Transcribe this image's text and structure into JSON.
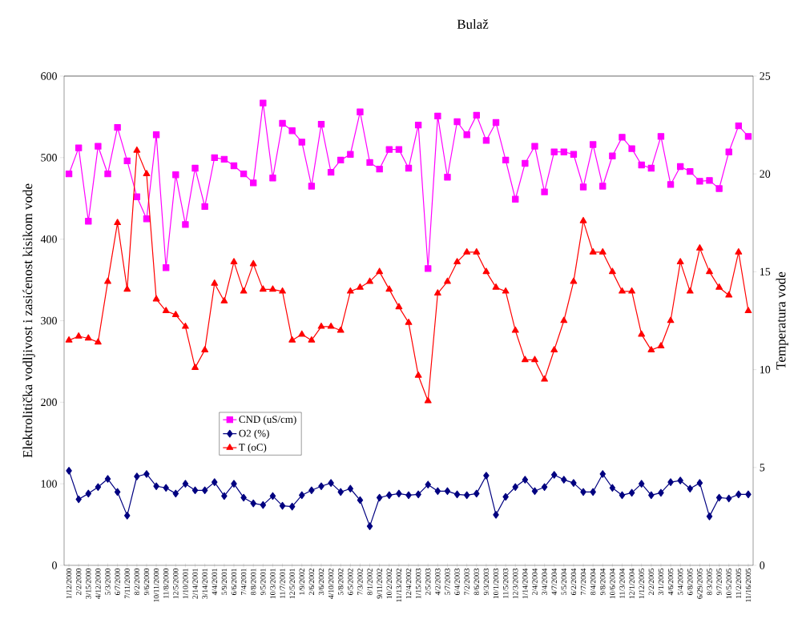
{
  "chart_data": {
    "type": "line",
    "title": "Bulaž",
    "ylabel": "Elektrolitička vodljivost i zasićenost kisikom vode",
    "y2label": "Temperatura vode",
    "categories": [
      "1/12/2000",
      "2/2/2000",
      "3/15/2000",
      "4/12/2000",
      "5/3/2000",
      "6/7/2000",
      "7/11/2000",
      "8/2/2000",
      "9/6/2000",
      "10/11/2000",
      "11/8/2000",
      "12/5/2000",
      "1/10/2001",
      "2/14/2001",
      "3/14/2001",
      "4/4/2001",
      "5/9/2001",
      "6/6/2001",
      "7/4/2001",
      "8/8/2001",
      "9/5/2001",
      "10/3/2001",
      "11/7/2001",
      "12/5/2001",
      "1/9/2002",
      "2/6/2002",
      "3/6/2002",
      "4/10/2002",
      "5/8/2002",
      "6/5/2002",
      "7/3/2002",
      "8/1/2002",
      "9/11/2002",
      "10/2/2002",
      "11/13/2002",
      "12/4/2002",
      "1/15/2003",
      "2/5/2003",
      "4/2/2003",
      "5/7/2003",
      "6/4/2003",
      "7/2/2003",
      "8/6/2003",
      "9/3/2003",
      "10/1/2003",
      "11/5/2003",
      "12/3/2003",
      "1/14/2004",
      "2/4/2004",
      "3/4/2004",
      "4/7/2004",
      "5/5/2004",
      "6/2/2004",
      "7/7/2004",
      "8/4/2004",
      "9/8/2004",
      "10/6/2004",
      "11/3/2004",
      "12/1/2004",
      "1/12/2005",
      "2/2/2005",
      "3/1/2005",
      "4/6/2005",
      "5/4/2005",
      "6/8/2005",
      "6/29/2005",
      "8/3/2005",
      "9/7/2005",
      "10/5/2005",
      "11/2/2005",
      "11/16/2005"
    ],
    "series": [
      {
        "name": "CND (uS/cm)",
        "color": "#ff00ff",
        "marker": "square",
        "values": [
          480,
          512,
          422,
          514,
          480,
          537,
          496,
          452,
          425,
          528,
          365,
          479,
          418,
          487,
          440,
          500,
          498,
          490,
          480,
          469,
          567,
          475,
          542,
          533,
          519,
          465,
          541,
          482,
          497,
          504,
          556,
          494,
          486,
          510,
          510,
          487,
          540,
          364,
          551,
          476,
          544,
          528,
          552,
          521,
          543,
          497,
          449,
          493,
          514,
          458,
          507,
          507,
          504,
          464,
          516,
          465,
          502,
          525,
          511,
          491,
          487,
          526,
          467,
          489,
          483,
          471,
          472,
          462,
          507,
          539,
          526
        ]
      },
      {
        "name": "O2 (%)",
        "color": "#000080",
        "marker": "diamond",
        "values": [
          116,
          81,
          88,
          96,
          106,
          90,
          61,
          109,
          112,
          97,
          95,
          88,
          100,
          92,
          92,
          102,
          85,
          100,
          83,
          76,
          74,
          85,
          73,
          72,
          86,
          92,
          97,
          101,
          90,
          94,
          80,
          48,
          83,
          86,
          88,
          86,
          87,
          99,
          91,
          91,
          87,
          86,
          88,
          110,
          62,
          84,
          96,
          105,
          91,
          96,
          111,
          105,
          101,
          90,
          90,
          112,
          95,
          86,
          89,
          100,
          86,
          89,
          102,
          104,
          94,
          101,
          60,
          83,
          82,
          87,
          87
        ]
      },
      {
        "name": "T (oC)",
        "color": "#ff0000",
        "marker": "triangle",
        "axis": "y2",
        "values": [
          11.5,
          11.7,
          11.6,
          11.4,
          14.5,
          17.5,
          14.1,
          21.2,
          20.0,
          13.6,
          13.0,
          12.8,
          12.2,
          10.1,
          11.0,
          14.4,
          13.5,
          15.5,
          14.0,
          15.4,
          14.1,
          14.1,
          14.0,
          11.5,
          11.8,
          11.5,
          12.2,
          12.2,
          12.0,
          14.0,
          14.2,
          14.5,
          15.0,
          14.1,
          13.2,
          12.4,
          9.7,
          8.4,
          13.9,
          14.5,
          15.5,
          16.0,
          16.0,
          15.0,
          14.2,
          14.0,
          12.0,
          10.5,
          10.5,
          9.5,
          11.0,
          12.5,
          14.5,
          17.6,
          16.0,
          16.0,
          15.0,
          14.0,
          14.0,
          11.8,
          11.0,
          11.2,
          12.5,
          15.5,
          14.0,
          16.2,
          15.0,
          14.2,
          13.8,
          16.0,
          13.0
        ]
      }
    ],
    "ylim": [
      0,
      600
    ],
    "yticks": [
      0,
      100,
      200,
      300,
      400,
      500,
      600
    ],
    "y2lim": [
      0,
      25
    ],
    "y2ticks": [
      0,
      5,
      10,
      15,
      20,
      25
    ],
    "legend": "left",
    "line_style": "solid"
  }
}
